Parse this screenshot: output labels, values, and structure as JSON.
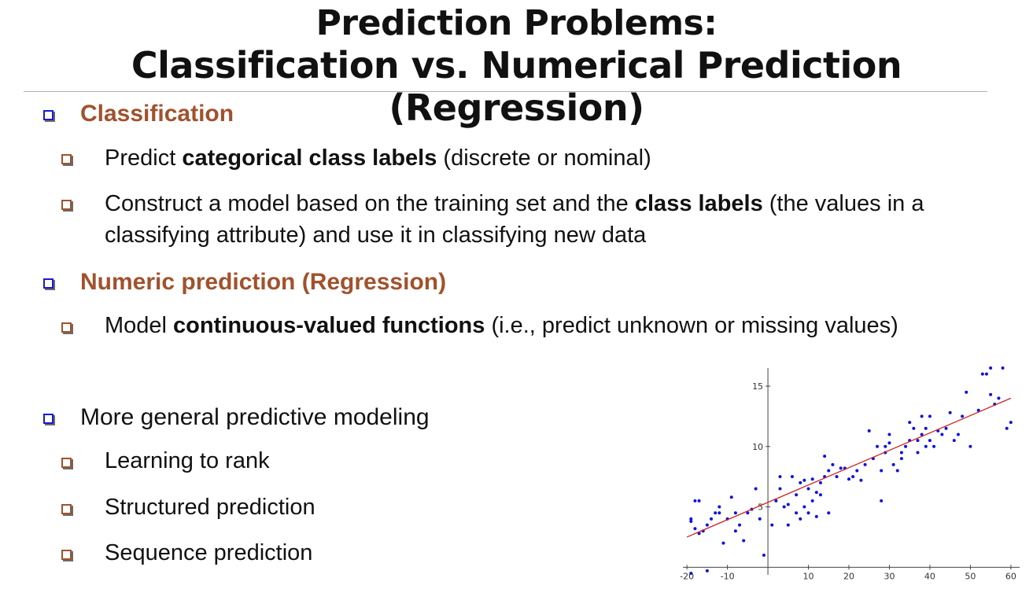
{
  "title": {
    "line1": "Prediction Problems:",
    "line2": "Classification vs. Numerical Prediction (Regression)"
  },
  "bullets": {
    "classification": {
      "heading": "Classification",
      "sub1": {
        "pre": "Predict ",
        "bold": "categorical class labels",
        "post": " (discrete or nominal)"
      },
      "sub2": {
        "pre": "Construct a model based on the training set and the ",
        "bold": "class labels",
        "post": " (the values in a",
        "line2": "classifying attribute) and use it in classifying new data"
      }
    },
    "numeric": {
      "heading": "Numeric prediction (Regression)",
      "sub1": {
        "pre": "Model ",
        "bold": "continuous-valued functions",
        "post": " (i.e., predict unknown or missing values)"
      }
    },
    "general": {
      "heading": "More general predictive modeling",
      "items": [
        "Learning to rank",
        "Structured prediction",
        "Sequence prediction"
      ]
    }
  },
  "colors": {
    "accent": "#a0522d",
    "bullet_blue": "#1a1ad0",
    "points": "#1010e0",
    "fit_line": "#cc2222"
  },
  "chart_data": {
    "type": "scatter",
    "title": "",
    "xlabel": "",
    "ylabel": "",
    "xlim": [
      -21,
      61
    ],
    "ylim": [
      -0.5,
      16.5
    ],
    "xticks": [
      -20,
      -10,
      10,
      20,
      30,
      40,
      50,
      60
    ],
    "yticks": [
      5,
      10,
      15
    ],
    "grid": false,
    "fit_line": {
      "x": [
        -20,
        60
      ],
      "y": [
        2.5,
        14.0
      ]
    },
    "points": [
      [
        -19,
        3.8
      ],
      [
        -19,
        4.0
      ],
      [
        -18,
        5.5
      ],
      [
        -17,
        5.5
      ],
      [
        -18,
        3.2
      ],
      [
        -17,
        2.8
      ],
      [
        -16,
        3.0
      ],
      [
        -15,
        3.5
      ],
      [
        -14,
        4.0
      ],
      [
        -13,
        4.5
      ],
      [
        -12,
        4.5
      ],
      [
        -12,
        5.0
      ],
      [
        -11,
        2.0
      ],
      [
        -10,
        4.0
      ],
      [
        -9,
        5.8
      ],
      [
        -8,
        3.0
      ],
      [
        -8,
        4.5
      ],
      [
        -7,
        3.5
      ],
      [
        -6,
        2.2
      ],
      [
        -5,
        4.5
      ],
      [
        -4,
        4.8
      ],
      [
        -3,
        6.5
      ],
      [
        -2,
        4.0
      ],
      [
        -1,
        1.0
      ],
      [
        -19,
        -0.5
      ],
      [
        -15,
        -0.3
      ],
      [
        1,
        3.5
      ],
      [
        2,
        5.5
      ],
      [
        3,
        7.5
      ],
      [
        3,
        6.5
      ],
      [
        4,
        5.0
      ],
      [
        5,
        3.5
      ],
      [
        5,
        5.2
      ],
      [
        6,
        7.5
      ],
      [
        7,
        4.5
      ],
      [
        7,
        6.0
      ],
      [
        8,
        7.0
      ],
      [
        8,
        4.0
      ],
      [
        9,
        5.0
      ],
      [
        9,
        7.2
      ],
      [
        10,
        6.5
      ],
      [
        10,
        4.5
      ],
      [
        11,
        7.3
      ],
      [
        11,
        5.5
      ],
      [
        12,
        6.2
      ],
      [
        12,
        4.2
      ],
      [
        13,
        7.0
      ],
      [
        13,
        6.0
      ],
      [
        14,
        9.2
      ],
      [
        14,
        7.5
      ],
      [
        15,
        4.5
      ],
      [
        15,
        8.0
      ],
      [
        16,
        8.5
      ],
      [
        17,
        7.5
      ],
      [
        18,
        8.2
      ],
      [
        19,
        8.2
      ],
      [
        20,
        7.3
      ],
      [
        21,
        7.5
      ],
      [
        22,
        8.0
      ],
      [
        23,
        7.2
      ],
      [
        24,
        8.5
      ],
      [
        25,
        11.3
      ],
      [
        26,
        9.0
      ],
      [
        27,
        10.0
      ],
      [
        28,
        5.5
      ],
      [
        28,
        8.0
      ],
      [
        29,
        9.5
      ],
      [
        29,
        10.0
      ],
      [
        30,
        10.3
      ],
      [
        30,
        11.0
      ],
      [
        31,
        8.5
      ],
      [
        32,
        8.0
      ],
      [
        33,
        9.0
      ],
      [
        33,
        9.5
      ],
      [
        34,
        10.0
      ],
      [
        35,
        10.5
      ],
      [
        35,
        12.0
      ],
      [
        36,
        11.5
      ],
      [
        37,
        9.5
      ],
      [
        37,
        10.5
      ],
      [
        38,
        11.0
      ],
      [
        38,
        12.5
      ],
      [
        39,
        10.0
      ],
      [
        39,
        11.5
      ],
      [
        40,
        10.5
      ],
      [
        40,
        12.5
      ],
      [
        41,
        10.0
      ],
      [
        42,
        11.3
      ],
      [
        43,
        11.0
      ],
      [
        44,
        11.5
      ],
      [
        45,
        12.8
      ],
      [
        46,
        10.5
      ],
      [
        47,
        11.0
      ],
      [
        48,
        12.5
      ],
      [
        49,
        14.5
      ],
      [
        52,
        13.0
      ],
      [
        53,
        16.0
      ],
      [
        54,
        16.0
      ],
      [
        55,
        16.5
      ],
      [
        56,
        13.5
      ],
      [
        57,
        14.0
      ],
      [
        58,
        16.5
      ],
      [
        59,
        11.5
      ],
      [
        60,
        12.0
      ],
      [
        55,
        14.3
      ],
      [
        50,
        10.0
      ]
    ]
  }
}
